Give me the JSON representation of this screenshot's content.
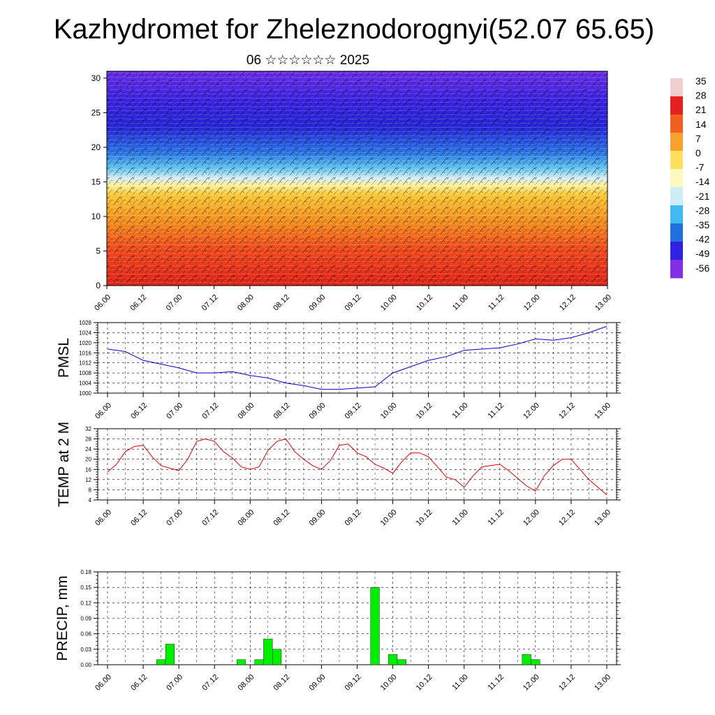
{
  "title": "Kazhydromet for Zheleznodorognyi(52.07 65.65)",
  "subtitle": "06 ☆☆☆☆☆☆ 2025",
  "time_ticks": [
    "06.00",
    "06.12",
    "07.00",
    "07.12",
    "08.00",
    "08.12",
    "09.00",
    "09.12",
    "10.00",
    "10.12",
    "11.00",
    "11.12",
    "12.00",
    "12.12",
    "13.00"
  ],
  "colorbar": {
    "labels": [
      "35",
      "28",
      "21",
      "14",
      "7",
      "0",
      "-7",
      "-14",
      "-21",
      "-28",
      "-35",
      "-42",
      "-49",
      "-56"
    ],
    "colors": [
      "#f0d0d0",
      "#e52020",
      "#f06020",
      "#f7a030",
      "#fde060",
      "#fff8c0",
      "#d0ecf8",
      "#40b8f0",
      "#2070e0",
      "#3020e0",
      "#8030e0"
    ]
  },
  "chart_data": [
    {
      "type": "heatmap",
      "title": "Kazhydromet for Zheleznodorognyi(52.07 65.65)",
      "subtitle": "06 ☆☆☆☆☆☆ 2025",
      "x": [
        "06.00",
        "06.12",
        "07.00",
        "07.12",
        "08.00",
        "08.12",
        "09.00",
        "09.12",
        "10.00",
        "10.12",
        "11.00",
        "11.12",
        "12.00",
        "12.12",
        "13.00"
      ],
      "yticks": [
        0,
        5,
        10,
        15,
        20,
        25,
        30
      ],
      "ylim": [
        0,
        31
      ],
      "color_levels": [
        35,
        28,
        21,
        14,
        7,
        0,
        -7,
        -14,
        -21,
        -28,
        -35,
        -42,
        -49,
        -56
      ],
      "temperature_profile": [
        {
          "y": 0,
          "value": 30
        },
        {
          "y": 5,
          "value": 24
        },
        {
          "y": 10,
          "value": 12
        },
        {
          "y": 15,
          "value": -8
        },
        {
          "y": 18,
          "value": -30
        },
        {
          "y": 20,
          "value": -42
        },
        {
          "y": 25,
          "value": -56
        },
        {
          "y": 30,
          "value": -52
        }
      ],
      "overlay": "wind barbs"
    },
    {
      "type": "line",
      "ylabel": "PMSL",
      "x": [
        "06.00",
        "06.06",
        "06.12",
        "06.18",
        "07.00",
        "07.06",
        "07.12",
        "07.18",
        "08.00",
        "08.06",
        "08.12",
        "08.18",
        "09.00",
        "09.06",
        "09.12",
        "09.18",
        "10.00",
        "10.06",
        "10.12",
        "10.18",
        "11.00",
        "11.06",
        "11.12",
        "11.18",
        "12.00",
        "12.06",
        "12.12",
        "12.18",
        "13.00"
      ],
      "xticks": [
        "06.00",
        "06.12",
        "07.00",
        "07.12",
        "08.00",
        "08.12",
        "09.00",
        "09.12",
        "10.00",
        "10.12",
        "11.00",
        "11.12",
        "12.00",
        "12.12",
        "13.00"
      ],
      "series": [
        {
          "color": "#0000cc",
          "values": [
            1017.5,
            1016.5,
            1013,
            1011.5,
            1010,
            1008,
            1008,
            1008.5,
            1007,
            1006,
            1004,
            1003,
            1001.5,
            1001.5,
            1002,
            1002.5,
            1008,
            1010.5,
            1013,
            1014.5,
            1017,
            1017.5,
            1018,
            1019.5,
            1021.5,
            1021,
            1022,
            1024,
            1026.5
          ]
        }
      ],
      "ylim": [
        1000,
        1028
      ],
      "yticks": [
        1000,
        1004,
        1008,
        1012,
        1016,
        1020,
        1024,
        1028
      ],
      "grid": true
    },
    {
      "type": "line",
      "ylabel": "TEMP at 2 M",
      "x": [
        "06.00",
        "06.03",
        "06.06",
        "06.09",
        "06.12",
        "06.15",
        "06.18",
        "06.21",
        "07.00",
        "07.03",
        "07.06",
        "07.09",
        "07.12",
        "07.15",
        "07.18",
        "07.21",
        "08.00",
        "08.03",
        "08.06",
        "08.09",
        "08.12",
        "08.15",
        "08.18",
        "08.21",
        "09.00",
        "09.03",
        "09.06",
        "09.09",
        "09.12",
        "09.15",
        "09.18",
        "09.21",
        "10.00",
        "10.03",
        "10.06",
        "10.09",
        "10.12",
        "10.15",
        "10.18",
        "10.21",
        "11.00",
        "11.03",
        "11.06",
        "11.09",
        "11.12",
        "11.15",
        "11.18",
        "11.21",
        "12.00",
        "12.03",
        "12.06",
        "12.09",
        "12.12",
        "12.15",
        "12.18",
        "12.21",
        "13.00"
      ],
      "xticks": [
        "06.00",
        "06.12",
        "07.00",
        "07.12",
        "08.00",
        "08.12",
        "09.00",
        "09.12",
        "10.00",
        "10.12",
        "11.00",
        "11.12",
        "12.00",
        "12.12",
        "13.00"
      ],
      "series": [
        {
          "color": "#dd0000",
          "values": [
            15,
            18,
            23,
            25,
            25.5,
            21,
            17.5,
            16.5,
            15.5,
            20,
            27,
            28,
            27,
            23,
            20.5,
            17,
            16,
            17,
            23.5,
            27,
            28,
            23,
            20,
            17.5,
            16,
            19.5,
            25.5,
            26,
            22.5,
            21,
            18,
            16.5,
            14.5,
            19,
            22.5,
            22.5,
            21,
            17,
            13,
            12,
            9,
            13.5,
            17,
            17.5,
            18,
            15.5,
            12.5,
            9.5,
            7.5,
            13.5,
            17.5,
            20,
            20,
            16,
            12,
            9,
            6
          ]
        }
      ],
      "ylim": [
        4,
        32
      ],
      "yticks": [
        4,
        8,
        12,
        16,
        20,
        24,
        28,
        32
      ],
      "grid": true
    },
    {
      "type": "bar",
      "ylabel": "PRECIP, mm",
      "x": [
        "06.00",
        "06.03",
        "06.06",
        "06.09",
        "06.12",
        "06.15",
        "06.18",
        "06.21",
        "07.00",
        "07.03",
        "07.06",
        "07.09",
        "07.12",
        "07.15",
        "07.18",
        "07.21",
        "08.00",
        "08.03",
        "08.06",
        "08.09",
        "08.12",
        "08.15",
        "08.18",
        "08.21",
        "09.00",
        "09.03",
        "09.06",
        "09.09",
        "09.12",
        "09.15",
        "09.18",
        "09.21",
        "10.00",
        "10.03",
        "10.06",
        "10.09",
        "10.12",
        "10.15",
        "10.18",
        "10.21",
        "11.00",
        "11.03",
        "11.06",
        "11.09",
        "11.12",
        "11.15",
        "11.18",
        "11.21",
        "12.00",
        "12.03",
        "12.06",
        "12.09",
        "12.12",
        "12.15",
        "12.18",
        "12.21",
        "13.00"
      ],
      "xticks": [
        "06.00",
        "06.12",
        "07.00",
        "07.12",
        "08.00",
        "08.12",
        "09.00",
        "09.12",
        "10.00",
        "10.12",
        "11.00",
        "11.12",
        "12.00",
        "12.12",
        "13.00"
      ],
      "series": [
        {
          "color": "#00ee00",
          "values": [
            0,
            0,
            0,
            0,
            0,
            0,
            0.01,
            0.04,
            0,
            0,
            0,
            0,
            0,
            0,
            0,
            0.01,
            0,
            0.01,
            0.05,
            0.03,
            0,
            0,
            0,
            0,
            0,
            0,
            0,
            0,
            0,
            0,
            0.15,
            0,
            0.02,
            0.01,
            0,
            0,
            0,
            0,
            0,
            0,
            0,
            0,
            0,
            0,
            0,
            0,
            0,
            0.02,
            0.01,
            0,
            0,
            0,
            0,
            0,
            0,
            0,
            0
          ]
        }
      ],
      "ylim": [
        0,
        0.18
      ],
      "yticks": [
        "0.00",
        "0.03",
        "0.06",
        "0.09",
        "0.12",
        "0.15",
        "0.18"
      ],
      "grid": true
    }
  ]
}
